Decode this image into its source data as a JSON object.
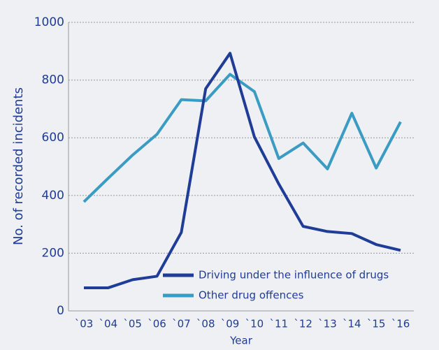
{
  "chart_data": {
    "type": "line",
    "xlabel": "Year",
    "ylabel": "No. of recorded incidents",
    "categories": [
      "`03",
      "`04",
      "`05",
      "`06",
      "`07",
      "`08",
      "`09",
      "`10",
      "`11",
      "`12",
      "`13",
      "`14",
      "`15",
      "`16"
    ],
    "series": [
      {
        "name": "Driving under the influence of drugs",
        "color": "#1f3c96",
        "values": [
          80,
          80,
          108,
          120,
          272,
          770,
          893,
          603,
          440,
          293,
          275,
          268,
          230,
          210
        ]
      },
      {
        "name": "Other drug offences",
        "color": "#3a9cc2",
        "values": [
          378,
          460,
          540,
          612,
          732,
          728,
          820,
          760,
          528,
          582,
          492,
          685,
          495,
          655
        ]
      }
    ],
    "ylim": [
      0,
      1000
    ],
    "yticks": [
      0,
      200,
      400,
      600,
      800,
      1000
    ],
    "grid": true,
    "legend": "lower center"
  }
}
